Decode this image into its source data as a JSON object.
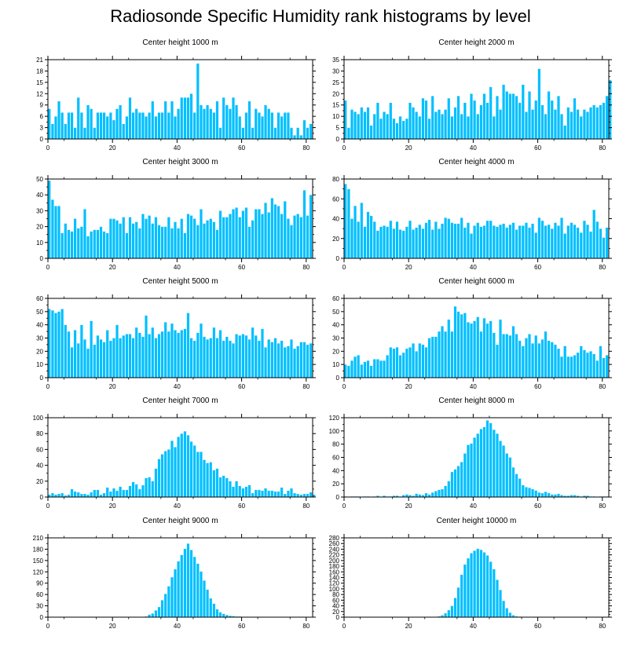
{
  "title": "Radiosonde Specific Humidity rank histograms by level",
  "colors": {
    "bar": "#00bfff",
    "axis": "#000000"
  },
  "chart_data": [
    {
      "type": "bar",
      "title": "Center height 1000 m",
      "xlim": [
        0,
        82
      ],
      "ylim": [
        0,
        21
      ],
      "xticks": [
        0,
        20,
        40,
        60,
        80
      ],
      "yticks": [
        0,
        3,
        6,
        9,
        12,
        15,
        18,
        21
      ],
      "values": [
        8,
        4,
        6,
        10,
        7,
        4,
        7,
        7,
        3,
        11,
        7,
        3,
        9,
        8,
        3,
        7,
        7,
        7,
        6,
        7,
        5,
        8,
        9,
        4,
        6,
        11,
        7,
        8,
        7,
        7,
        6,
        7,
        10,
        6,
        7,
        7,
        10,
        7,
        10,
        6,
        8,
        11,
        11,
        11,
        12,
        7,
        20,
        9,
        8,
        9,
        8,
        7,
        10,
        3,
        11,
        9,
        8,
        11,
        9,
        6,
        3,
        7,
        10,
        3,
        8,
        7,
        6,
        9,
        8,
        7,
        3,
        7,
        6,
        7,
        7,
        3,
        1,
        3,
        1,
        5,
        3,
        4
      ]
    },
    {
      "type": "bar",
      "title": "Center height 2000 m",
      "xlim": [
        0,
        82
      ],
      "ylim": [
        0,
        35
      ],
      "xticks": [
        0,
        20,
        40,
        60,
        80
      ],
      "yticks": [
        0,
        5,
        10,
        15,
        20,
        25,
        30,
        35
      ],
      "values": [
        17,
        5,
        13,
        12,
        11,
        14,
        12,
        14,
        6,
        11,
        16,
        9,
        12,
        11,
        16,
        9,
        7,
        10,
        8,
        9,
        16,
        14,
        12,
        10,
        18,
        17,
        9,
        19,
        12,
        13,
        11,
        13,
        18,
        10,
        14,
        19,
        11,
        16,
        10,
        20,
        17,
        11,
        15,
        20,
        16,
        23,
        10,
        19,
        13,
        24,
        21,
        20,
        20,
        19,
        16,
        24,
        12,
        21,
        13,
        17,
        31,
        15,
        11,
        21,
        17,
        13,
        19,
        11,
        6,
        14,
        12,
        18,
        13,
        10,
        13,
        12,
        14,
        15,
        14,
        15,
        16,
        19,
        26
      ]
    },
    {
      "type": "bar",
      "title": "Center height 3000 m",
      "xlim": [
        0,
        82
      ],
      "ylim": [
        0,
        50
      ],
      "xticks": [
        0,
        20,
        40,
        60,
        80
      ],
      "yticks": [
        0,
        10,
        20,
        30,
        40,
        50
      ],
      "values": [
        49,
        37,
        33,
        33,
        16,
        22,
        18,
        17,
        25,
        19,
        20,
        31,
        14,
        17,
        18,
        18,
        20,
        17,
        16,
        25,
        25,
        24,
        22,
        26,
        16,
        26,
        22,
        23,
        19,
        28,
        25,
        27,
        22,
        26,
        21,
        20,
        20,
        26,
        19,
        23,
        19,
        25,
        16,
        28,
        27,
        25,
        21,
        31,
        22,
        24,
        25,
        23,
        18,
        30,
        26,
        26,
        28,
        31,
        32,
        26,
        30,
        32,
        20,
        24,
        31,
        31,
        28,
        35,
        29,
        38,
        34,
        33,
        28,
        36,
        25,
        21,
        27,
        28,
        26,
        43,
        27,
        40
      ]
    },
    {
      "type": "bar",
      "title": "Center height 4000 m",
      "xlim": [
        0,
        82
      ],
      "ylim": [
        0,
        80
      ],
      "xticks": [
        0,
        20,
        40,
        60,
        80
      ],
      "yticks": [
        0,
        20,
        40,
        60,
        80
      ],
      "values": [
        75,
        70,
        40,
        53,
        37,
        56,
        32,
        47,
        43,
        37,
        28,
        32,
        33,
        32,
        38,
        30,
        37,
        29,
        28,
        32,
        38,
        29,
        31,
        34,
        30,
        36,
        39,
        29,
        37,
        30,
        35,
        41,
        40,
        36,
        35,
        35,
        41,
        31,
        36,
        25,
        33,
        36,
        32,
        33,
        38,
        38,
        33,
        32,
        34,
        35,
        31,
        34,
        36,
        29,
        33,
        33,
        36,
        31,
        35,
        26,
        41,
        38,
        33,
        34,
        30,
        36,
        33,
        41,
        25,
        33,
        36,
        34,
        31,
        26,
        38,
        34,
        27,
        49,
        37,
        30,
        21,
        31
      ]
    },
    {
      "type": "bar",
      "title": "Center height 5000 m",
      "xlim": [
        0,
        82
      ],
      "ylim": [
        0,
        60
      ],
      "xticks": [
        0,
        20,
        40,
        60,
        80
      ],
      "yticks": [
        0,
        10,
        20,
        30,
        40,
        50,
        60
      ],
      "values": [
        52,
        51,
        49,
        50,
        52,
        40,
        35,
        23,
        36,
        26,
        40,
        29,
        22,
        43,
        25,
        32,
        29,
        27,
        36,
        28,
        30,
        40,
        30,
        32,
        33,
        33,
        30,
        38,
        34,
        31,
        47,
        33,
        38,
        30,
        33,
        35,
        42,
        35,
        41,
        36,
        34,
        36,
        37,
        49,
        30,
        28,
        34,
        41,
        31,
        29,
        30,
        38,
        30,
        36,
        28,
        31,
        28,
        26,
        33,
        32,
        33,
        32,
        29,
        38,
        32,
        28,
        37,
        23,
        29,
        27,
        30,
        26,
        28,
        23,
        24,
        29,
        22,
        24,
        27,
        27,
        25,
        26
      ]
    },
    {
      "type": "bar",
      "title": "Center height 6000 m",
      "xlim": [
        0,
        82
      ],
      "ylim": [
        0,
        60
      ],
      "xticks": [
        0,
        20,
        40,
        60,
        80
      ],
      "yticks": [
        0,
        10,
        20,
        30,
        40,
        50,
        60
      ],
      "values": [
        10,
        9,
        13,
        16,
        17,
        10,
        12,
        13,
        9,
        14,
        14,
        13,
        13,
        17,
        23,
        22,
        23,
        17,
        19,
        22,
        23,
        26,
        20,
        26,
        25,
        23,
        30,
        31,
        31,
        35,
        39,
        35,
        44,
        35,
        54,
        50,
        48,
        49,
        42,
        41,
        43,
        46,
        35,
        45,
        41,
        43,
        34,
        25,
        44,
        33,
        33,
        32,
        39,
        33,
        28,
        24,
        30,
        33,
        26,
        32,
        26,
        29,
        35,
        28,
        27,
        25,
        22,
        16,
        24,
        16,
        16,
        17,
        19,
        24,
        21,
        19,
        20,
        18,
        13,
        24,
        15,
        17
      ]
    },
    {
      "type": "bar",
      "title": "Center height 7000 m",
      "xlim": [
        0,
        82
      ],
      "ylim": [
        0,
        100
      ],
      "xticks": [
        0,
        20,
        40,
        60,
        80
      ],
      "yticks": [
        0,
        20,
        40,
        60,
        80,
        100
      ],
      "values": [
        3,
        5,
        3,
        4,
        5,
        2,
        3,
        10,
        7,
        6,
        4,
        4,
        3,
        6,
        9,
        9,
        3,
        5,
        12,
        7,
        11,
        8,
        13,
        9,
        9,
        14,
        19,
        16,
        10,
        15,
        24,
        25,
        20,
        36,
        48,
        54,
        58,
        60,
        71,
        63,
        76,
        80,
        83,
        78,
        70,
        65,
        57,
        57,
        47,
        43,
        44,
        34,
        36,
        25,
        27,
        24,
        20,
        13,
        20,
        14,
        11,
        13,
        15,
        5,
        9,
        9,
        8,
        11,
        8,
        8,
        7,
        7,
        12,
        4,
        8,
        11,
        5,
        4,
        3,
        4,
        4,
        6,
        3
      ]
    },
    {
      "type": "bar",
      "title": "Center height 8000 m",
      "xlim": [
        0,
        82
      ],
      "ylim": [
        0,
        120
      ],
      "xticks": [
        0,
        20,
        40,
        60,
        80
      ],
      "yticks": [
        0,
        20,
        40,
        60,
        80,
        100,
        120
      ],
      "values": [
        1,
        0,
        1,
        1,
        1,
        0,
        1,
        1,
        0,
        1,
        2,
        0,
        2,
        1,
        1,
        2,
        2,
        1,
        3,
        4,
        3,
        2,
        5,
        4,
        3,
        6,
        4,
        7,
        9,
        11,
        12,
        17,
        24,
        38,
        42,
        47,
        53,
        66,
        79,
        81,
        90,
        96,
        103,
        106,
        116,
        112,
        102,
        96,
        85,
        78,
        66,
        60,
        45,
        35,
        28,
        18,
        15,
        14,
        12,
        10,
        7,
        6,
        8,
        6,
        4,
        4,
        5,
        3,
        2,
        2,
        3,
        3,
        2,
        1,
        2,
        2,
        1,
        1,
        0,
        1,
        1,
        1,
        0
      ]
    },
    {
      "type": "bar",
      "title": "Center height 9000 m",
      "xlim": [
        0,
        82
      ],
      "ylim": [
        0,
        210
      ],
      "xticks": [
        0,
        20,
        40,
        60,
        80
      ],
      "yticks": [
        0,
        30,
        60,
        90,
        120,
        150,
        180,
        210
      ],
      "values": [
        0,
        0,
        0,
        0,
        0,
        0,
        0,
        0,
        0,
        0,
        0,
        0,
        0,
        0,
        0,
        0,
        0,
        0,
        0,
        0,
        0,
        0,
        0,
        0,
        0,
        0,
        0,
        0,
        0,
        0,
        2,
        7,
        10,
        18,
        27,
        45,
        62,
        82,
        106,
        127,
        148,
        165,
        181,
        195,
        178,
        160,
        142,
        121,
        97,
        73,
        50,
        36,
        21,
        13,
        9,
        6,
        4,
        3,
        2,
        2,
        1,
        1,
        0,
        0,
        0,
        0,
        0,
        0,
        0,
        0,
        0,
        0,
        0,
        0,
        0,
        0,
        0,
        0,
        0,
        0,
        0,
        0
      ]
    },
    {
      "type": "bar",
      "title": "Center height 10000 m",
      "xlim": [
        0,
        82
      ],
      "ylim": [
        0,
        280
      ],
      "xticks": [
        0,
        20,
        40,
        60,
        80
      ],
      "yticks": [
        0,
        20,
        40,
        60,
        80,
        100,
        120,
        140,
        160,
        180,
        200,
        220,
        240,
        260,
        280
      ],
      "values": [
        0,
        0,
        0,
        0,
        0,
        0,
        0,
        0,
        0,
        0,
        0,
        0,
        0,
        0,
        0,
        0,
        0,
        0,
        0,
        0,
        0,
        0,
        0,
        0,
        0,
        0,
        0,
        0,
        1,
        3,
        7,
        14,
        25,
        40,
        68,
        105,
        150,
        186,
        208,
        226,
        235,
        242,
        238,
        229,
        218,
        196,
        170,
        132,
        96,
        58,
        32,
        16,
        7,
        3,
        2,
        1,
        0,
        0,
        0,
        0,
        0,
        0,
        0,
        0,
        0,
        0,
        0,
        0,
        0,
        0,
        0,
        0,
        0,
        0,
        0,
        0,
        0,
        0,
        0,
        0,
        0,
        0
      ]
    }
  ]
}
